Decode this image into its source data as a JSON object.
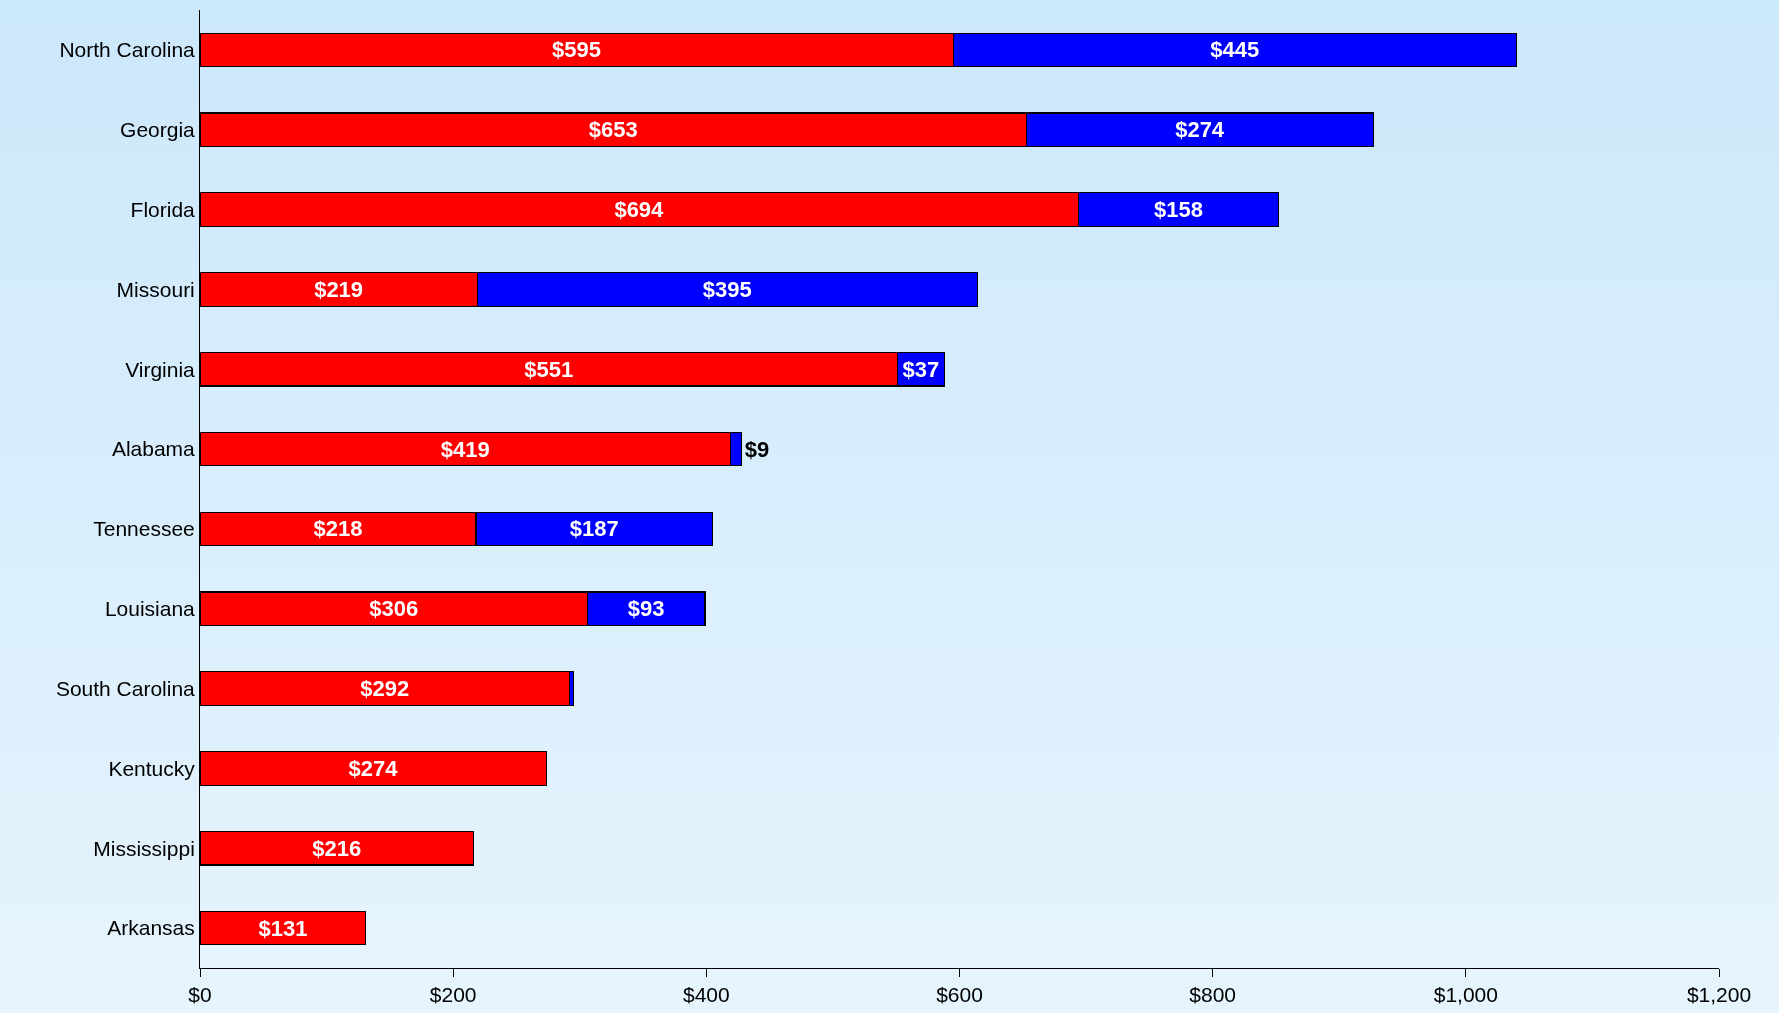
{
  "chart_data": {
    "type": "bar",
    "orientation": "horizontal",
    "stacked": true,
    "categories": [
      "North Carolina",
      "Georgia",
      "Florida",
      "Missouri",
      "Virginia",
      "Alabama",
      "Tennessee",
      "Louisiana",
      "South Carolina",
      "Kentucky",
      "Mississippi",
      "Arkansas"
    ],
    "series": [
      {
        "color": "#ff0000",
        "values": [
          595,
          653,
          694,
          219,
          551,
          419,
          218,
          306,
          292,
          274,
          216,
          131
        ],
        "value_labels": [
          "$595",
          "$653",
          "$694",
          "$219",
          "$551",
          "$419",
          "$218",
          "$306",
          "$292",
          "$274",
          "$216",
          "$131"
        ]
      },
      {
        "color": "#0000ff",
        "values": [
          445,
          274,
          158,
          395,
          37,
          9,
          187,
          93,
          3,
          null,
          null,
          null
        ],
        "value_labels": [
          "$445",
          "$274",
          "$158",
          "$395",
          "$37",
          "$9",
          "$187",
          "$93",
          null,
          null,
          null,
          null
        ]
      }
    ],
    "xlim": [
      0,
      1200
    ],
    "xticks": [
      {
        "value": 0,
        "label": "$0"
      },
      {
        "value": 200,
        "label": "$200"
      },
      {
        "value": 400,
        "label": "$400"
      },
      {
        "value": 600,
        "label": "$600"
      },
      {
        "value": 800,
        "label": "$800"
      },
      {
        "value": 1000,
        "label": "$1,000"
      },
      {
        "value": 1200,
        "label": "$1,200"
      }
    ],
    "grid": false
  }
}
